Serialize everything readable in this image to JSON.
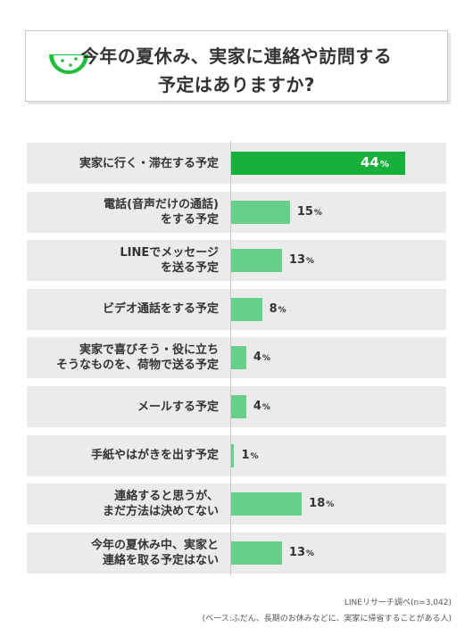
{
  "title": {
    "line1": "今年の夏休み、実家に連絡や訪問する",
    "line2": "予定はありますか?"
  },
  "colors": {
    "highlight": "#16b03a",
    "bar": "#66cf8a",
    "row_bg": "#ebebeb",
    "logo_green": "#1fbf3a"
  },
  "chart_data": {
    "type": "bar",
    "orientation": "horizontal",
    "unit": "%",
    "xlim": [
      0,
      50
    ],
    "categories": [
      [
        "実家に行く・滞在する予定"
      ],
      [
        "電話(音声だけの通話)",
        "をする予定"
      ],
      [
        "LINEでメッセージ",
        "を送る予定"
      ],
      [
        "ビデオ通話をする予定"
      ],
      [
        "実家で喜びそう・役に立ち",
        "そうなものを、荷物で送る予定"
      ],
      [
        "メールする予定"
      ],
      [
        "手紙やはがきを出す予定"
      ],
      [
        "連絡すると思うが、",
        "まだ方法は決めてない"
      ],
      [
        "今年の夏休み中、実家と",
        "連絡を取る予定はない"
      ]
    ],
    "values": [
      44,
      15,
      13,
      8,
      4,
      4,
      1,
      18,
      13
    ],
    "highlight_index": 0
  },
  "footer": {
    "source": "LINEリサーチ調べ(n=3,042)",
    "base": "(ベース:ふだん、長期のお休みなどに、実家に帰省することがある人)"
  }
}
